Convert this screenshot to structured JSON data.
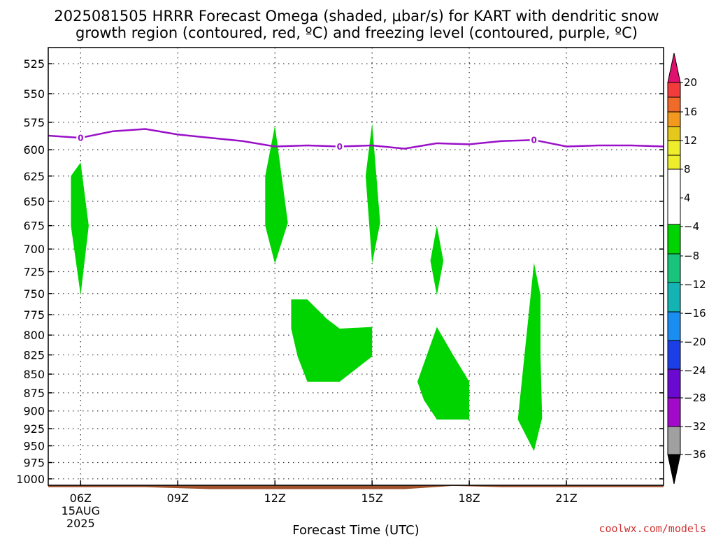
{
  "title": {
    "line1": "2025081505 HRRR Forecast Omega (shaded, μbar/s) for KART with dendritic snow",
    "line2": "growth region (contoured, red, ºC) and freezing level (contoured, purple, ºC)"
  },
  "credit": "coolwx.com/models",
  "chart_data": {
    "type": "heatmap",
    "xlabel": "Forecast Time (UTC)",
    "ylabel": "",
    "x_unit": "hours UTC (15 AUG 2025)",
    "xlim": [
      5,
      24
    ],
    "ylim": [
      1010,
      512
    ],
    "y_scale": "log (pressure, hPa), inverted",
    "grid": true,
    "x_ticks": [
      {
        "value": 6,
        "label": "06Z",
        "sub1": "15AUG",
        "sub2": "2025"
      },
      {
        "value": 9,
        "label": "09Z",
        "sub1": "",
        "sub2": ""
      },
      {
        "value": 12,
        "label": "12Z",
        "sub1": "",
        "sub2": ""
      },
      {
        "value": 15,
        "label": "15Z",
        "sub1": "",
        "sub2": ""
      },
      {
        "value": 18,
        "label": "18Z",
        "sub1": "",
        "sub2": ""
      },
      {
        "value": 21,
        "label": "21Z",
        "sub1": "",
        "sub2": ""
      }
    ],
    "y_ticks": [
      525,
      550,
      575,
      600,
      625,
      650,
      675,
      700,
      725,
      750,
      775,
      800,
      825,
      850,
      875,
      900,
      925,
      950,
      975,
      1000
    ],
    "colorbar": {
      "labels": [
        "20",
        "16",
        "12",
        "8",
        "4",
        "−4",
        "−8",
        "−12",
        "−16",
        "−20",
        "−24",
        "−28",
        "−32",
        "−36"
      ],
      "bins": [
        {
          "range": ">20",
          "color": "#e0106e"
        },
        {
          "range": "16 to 20",
          "color": "#f23c3c"
        },
        {
          "range": "12 to 16",
          "color": "#f06a2a"
        },
        {
          "range": "8 to 12",
          "color": "#f39a1e"
        },
        {
          "range": "4 to 8",
          "color": "#e6c81c"
        },
        {
          "range": "0 to 4",
          "color": "#eeee2c"
        },
        {
          "range": "-4 to 4",
          "color": "#ffffff"
        },
        {
          "range": "-8 to -4",
          "color": "#00d400"
        },
        {
          "range": "-12 to -8",
          "color": "#19c47c"
        },
        {
          "range": "-16 to -12",
          "color": "#14b4b4"
        },
        {
          "range": "-20 to -16",
          "color": "#1a8ef0"
        },
        {
          "range": "-24 to -20",
          "color": "#1c3ee6"
        },
        {
          "range": "-28 to -24",
          "color": "#6a0ad0"
        },
        {
          "range": "-32 to -28",
          "color": "#a00ac8"
        },
        {
          "range": "-36 to -32",
          "color": "#a0a0a0"
        },
        {
          "range": "<-36",
          "color": "#000000"
        }
      ]
    },
    "omega_regions": [
      {
        "range": "-8 to -4",
        "color": "#00d400",
        "points": [
          [
            6.0,
            612
          ],
          [
            6.25,
            675
          ],
          [
            6.0,
            752
          ],
          [
            5.7,
            675
          ],
          [
            5.7,
            625
          ]
        ]
      },
      {
        "range": "-8 to -4",
        "color": "#00d400",
        "points": [
          [
            12.0,
            578
          ],
          [
            12.4,
            672
          ],
          [
            12.0,
            716
          ],
          [
            11.7,
            675
          ],
          [
            11.7,
            625
          ]
        ]
      },
      {
        "range": "-8 to -4",
        "color": "#00d400",
        "points": [
          [
            15.0,
            576
          ],
          [
            15.25,
            672
          ],
          [
            15.0,
            716
          ],
          [
            14.8,
            625
          ]
        ]
      },
      {
        "range": "-8 to -4",
        "color": "#00d400",
        "points": [
          [
            17.0,
            675
          ],
          [
            17.2,
            713
          ],
          [
            17.0,
            752
          ],
          [
            16.8,
            713
          ]
        ]
      },
      {
        "range": "-8 to -4",
        "color": "#00d400",
        "points": [
          [
            12.5,
            757
          ],
          [
            13.0,
            757
          ],
          [
            13.6,
            780
          ],
          [
            14.0,
            792
          ],
          [
            15.0,
            790
          ],
          [
            15.0,
            827
          ],
          [
            14.0,
            860
          ],
          [
            13.0,
            860
          ],
          [
            12.7,
            827
          ],
          [
            12.5,
            792
          ]
        ]
      },
      {
        "range": "-8 to -4",
        "color": "#00d400",
        "points": [
          [
            17.0,
            790
          ],
          [
            17.5,
            825
          ],
          [
            18.0,
            860
          ],
          [
            18.0,
            912
          ],
          [
            17.0,
            912
          ],
          [
            16.6,
            885
          ],
          [
            16.4,
            860
          ]
        ]
      },
      {
        "range": "-8 to -4",
        "color": "#00d400",
        "points": [
          [
            20.0,
            715
          ],
          [
            20.2,
            752
          ],
          [
            20.2,
            825
          ],
          [
            20.25,
            910
          ],
          [
            20.0,
            958
          ],
          [
            19.5,
            912
          ]
        ]
      }
    ],
    "freezing_level": {
      "contour_label": "0",
      "label_at_hours": [
        6.0,
        14.0,
        20.0
      ],
      "x": [
        5,
        6,
        7,
        8,
        9,
        10,
        11,
        12,
        13,
        14,
        15,
        16,
        17,
        18,
        19,
        20,
        21,
        22,
        23,
        24
      ],
      "y": [
        587,
        589,
        583,
        581,
        586,
        589,
        592,
        597,
        596,
        597,
        596,
        599,
        594,
        595,
        592,
        591,
        597,
        596,
        596,
        597
      ]
    },
    "surface": {
      "x": [
        5,
        8,
        10,
        16,
        17.5,
        19,
        24
      ],
      "p": [
        1013,
        1013,
        1016,
        1016,
        1011,
        1013,
        1013
      ]
    }
  }
}
